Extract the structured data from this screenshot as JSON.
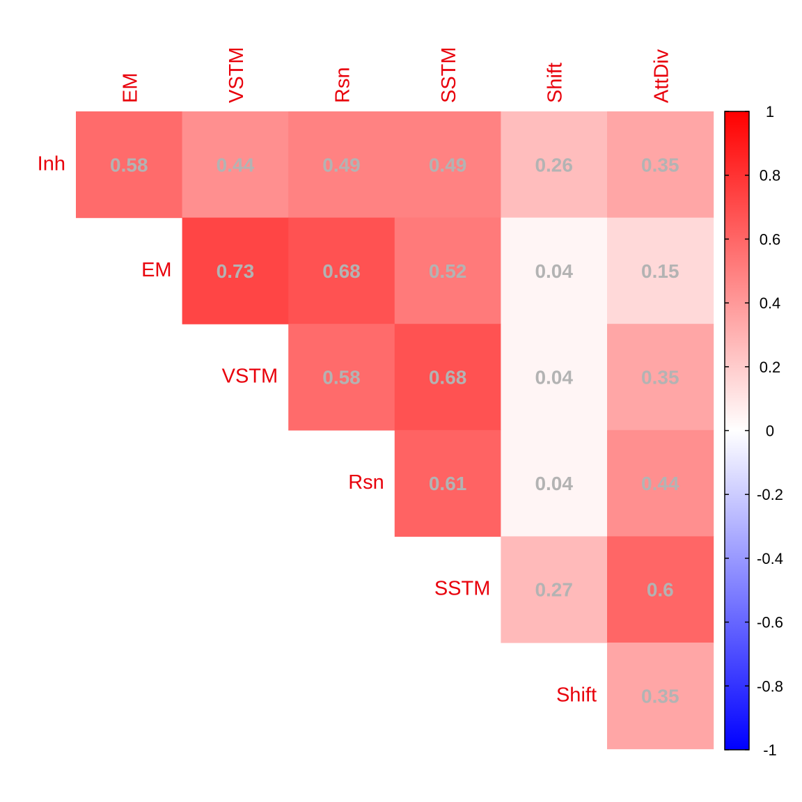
{
  "chart_data": {
    "type": "heatmap",
    "title": "",
    "variant": "correlation-matrix-upper-triangle",
    "row_labels": [
      "Inh",
      "EM",
      "VSTM",
      "Rsn",
      "SSTM",
      "Shift"
    ],
    "col_labels": [
      "EM",
      "VSTM",
      "Rsn",
      "SSTM",
      "Shift",
      "AttDiv"
    ],
    "cells": [
      {
        "row": "Inh",
        "col": "EM",
        "value": 0.58,
        "label": "0.58"
      },
      {
        "row": "Inh",
        "col": "VSTM",
        "value": 0.44,
        "label": "0.44"
      },
      {
        "row": "Inh",
        "col": "Rsn",
        "value": 0.49,
        "label": "0.49"
      },
      {
        "row": "Inh",
        "col": "SSTM",
        "value": 0.49,
        "label": "0.49"
      },
      {
        "row": "Inh",
        "col": "Shift",
        "value": 0.26,
        "label": "0.26"
      },
      {
        "row": "Inh",
        "col": "AttDiv",
        "value": 0.35,
        "label": "0.35"
      },
      {
        "row": "EM",
        "col": "VSTM",
        "value": 0.73,
        "label": "0.73"
      },
      {
        "row": "EM",
        "col": "Rsn",
        "value": 0.68,
        "label": "0.68"
      },
      {
        "row": "EM",
        "col": "SSTM",
        "value": 0.52,
        "label": "0.52"
      },
      {
        "row": "EM",
        "col": "Shift",
        "value": 0.04,
        "label": "0.04"
      },
      {
        "row": "EM",
        "col": "AttDiv",
        "value": 0.15,
        "label": "0.15"
      },
      {
        "row": "VSTM",
        "col": "Rsn",
        "value": 0.58,
        "label": "0.58"
      },
      {
        "row": "VSTM",
        "col": "SSTM",
        "value": 0.68,
        "label": "0.68"
      },
      {
        "row": "VSTM",
        "col": "Shift",
        "value": 0.04,
        "label": "0.04"
      },
      {
        "row": "VSTM",
        "col": "AttDiv",
        "value": 0.35,
        "label": "0.35"
      },
      {
        "row": "Rsn",
        "col": "SSTM",
        "value": 0.61,
        "label": "0.61"
      },
      {
        "row": "Rsn",
        "col": "Shift",
        "value": 0.04,
        "label": "0.04"
      },
      {
        "row": "Rsn",
        "col": "AttDiv",
        "value": 0.44,
        "label": "0.44"
      },
      {
        "row": "SSTM",
        "col": "Shift",
        "value": 0.27,
        "label": "0.27"
      },
      {
        "row": "SSTM",
        "col": "AttDiv",
        "value": 0.6,
        "label": "0.6"
      },
      {
        "row": "Shift",
        "col": "AttDiv",
        "value": 0.35,
        "label": "0.35"
      }
    ],
    "color_scale": {
      "min": -1,
      "max": 1,
      "low_color": "#0000ff",
      "mid_color": "#ffffff",
      "high_color": "#ff0000",
      "ticks": [
        1,
        0.8,
        0.6,
        0.4,
        0.2,
        0,
        -0.2,
        -0.4,
        -0.6,
        -0.8,
        -1
      ],
      "tick_labels": [
        "1",
        "0.8",
        "0.6",
        "0.4",
        "0.2",
        "0",
        "-0.2",
        "-0.4",
        "-0.6",
        "-0.8",
        "-1"
      ]
    },
    "label_color": "#e8000b",
    "value_text_color": "#b3b3b3",
    "legend_position": "right"
  }
}
